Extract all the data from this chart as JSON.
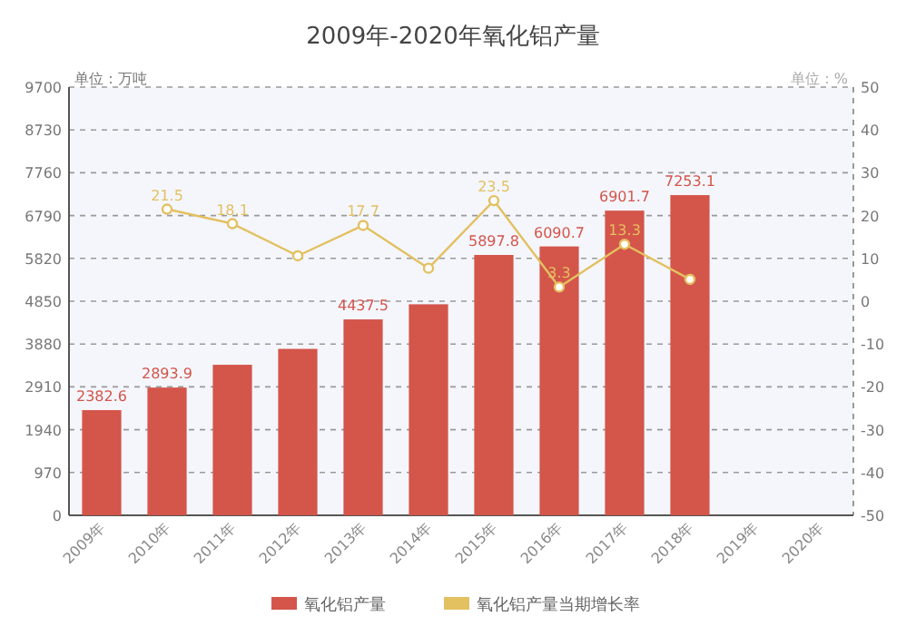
{
  "chart_data": {
    "type": "bar",
    "title": "2009年-2020年氧化铝产量",
    "annotations": [
      "单位：万吨",
      "单位：%"
    ],
    "categories": [
      "2009年",
      "2010年",
      "2011年",
      "2012年",
      "2013年",
      "2014年",
      "2015年",
      "2016年",
      "2017年",
      "2018年",
      "2019年",
      "2020年"
    ],
    "series": [
      {
        "name": "氧化铝产量",
        "color": "#d4554a",
        "values": [
          2382.6,
          2893.9,
          3410,
          3770,
          4437.5,
          4780,
          5897.8,
          6090.7,
          6901.7,
          7253.1,
          null,
          null
        ],
        "value_labels": [
          "2382.6",
          "2893.9",
          null,
          null,
          "4437.5",
          null,
          "5897.8",
          "6090.7",
          "6901.7",
          "7253.1",
          null,
          null
        ]
      },
      {
        "name": "氧化铝产量当期增长率",
        "type": "line",
        "axis": "y2",
        "color": "#e3c060",
        "marker": "circle",
        "values": [
          null,
          21.5,
          18.1,
          10.6,
          17.7,
          7.7,
          23.5,
          3.3,
          13.3,
          5.1,
          null,
          null
        ],
        "value_labels": [
          null,
          "21.5",
          "18.1",
          null,
          "17.7",
          null,
          "23.5",
          "3.3",
          "13.3",
          null,
          null,
          null
        ]
      }
    ],
    "ylim": [
      0,
      9700
    ],
    "yticks": [
      0,
      970,
      1940,
      2910,
      3880,
      4850,
      5820,
      6790,
      7760,
      8730,
      9700
    ],
    "y2lim": [
      -50,
      50
    ],
    "y2ticks": [
      -50,
      -40,
      -30,
      -20,
      -10,
      0,
      10,
      20,
      30,
      40,
      50
    ],
    "grid": "y",
    "legend": "bottom"
  }
}
